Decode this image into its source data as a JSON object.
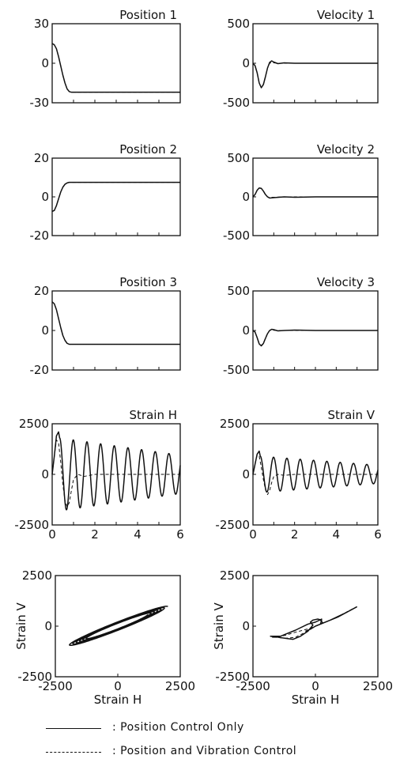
{
  "legend": {
    "solid_label": ": Position Control Only",
    "dashed_label": ": Position and Vibration Control"
  },
  "chart_data": [
    {
      "type": "line",
      "title": "Position 1",
      "xlim": [
        0,
        6
      ],
      "ylim": [
        -30,
        30
      ],
      "yticks": [
        "30",
        "0",
        "-30"
      ],
      "xticks": [],
      "x": [
        0,
        0.1,
        0.2,
        0.3,
        0.4,
        0.5,
        0.6,
        0.7,
        0.8,
        0.9,
        1.0,
        1.5,
        2,
        3,
        4,
        5,
        6
      ],
      "series": [
        {
          "style": "solid",
          "values": [
            15,
            14,
            11,
            5,
            -2,
            -9,
            -15,
            -19.5,
            -21.5,
            -22,
            -22,
            -22,
            -22,
            -22,
            -22,
            -22,
            -22
          ]
        },
        {
          "style": "dashed",
          "values": [
            15,
            14,
            11,
            5,
            -2,
            -9,
            -15,
            -19.5,
            -21.5,
            -22,
            -22,
            -22,
            -22,
            -22,
            -22,
            -22,
            -22
          ]
        }
      ]
    },
    {
      "type": "line",
      "title": "Velocity 1",
      "xlim": [
        0,
        6
      ],
      "ylim": [
        -500,
        500
      ],
      "yticks": [
        "500",
        "0",
        "-500"
      ],
      "xticks": [],
      "x": [
        0,
        0.1,
        0.2,
        0.3,
        0.4,
        0.5,
        0.6,
        0.7,
        0.8,
        0.9,
        1.0,
        1.2,
        1.5,
        2,
        3,
        4,
        5,
        6
      ],
      "series": [
        {
          "style": "solid",
          "values": [
            0,
            -30,
            -120,
            -250,
            -310,
            -270,
            -170,
            -60,
            10,
            30,
            15,
            -5,
            5,
            0,
            0,
            0,
            0,
            0
          ]
        },
        {
          "style": "dashed",
          "values": [
            0,
            -30,
            -120,
            -250,
            -305,
            -265,
            -165,
            -60,
            0,
            10,
            5,
            0,
            0,
            0,
            0,
            0,
            0,
            0
          ]
        }
      ]
    },
    {
      "type": "line",
      "title": "Position 2",
      "xlim": [
        0,
        6
      ],
      "ylim": [
        -20,
        20
      ],
      "yticks": [
        "20",
        "0",
        "-20"
      ],
      "xticks": [],
      "x": [
        0,
        0.1,
        0.2,
        0.3,
        0.4,
        0.5,
        0.6,
        0.7,
        0.8,
        1.0,
        1.5,
        2,
        3,
        4,
        5,
        6
      ],
      "series": [
        {
          "style": "solid",
          "values": [
            -7.5,
            -7,
            -4.5,
            -1,
            2.5,
            5,
            6.5,
            7.2,
            7.5,
            7.5,
            7.5,
            7.5,
            7.5,
            7.5,
            7.5,
            7.5
          ]
        },
        {
          "style": "dashed",
          "values": [
            -7.5,
            -7,
            -4.5,
            -1,
            2.5,
            5,
            6.5,
            7.2,
            7.5,
            7.5,
            7.5,
            7.5,
            7.5,
            7.5,
            7.5,
            7.5
          ]
        }
      ]
    },
    {
      "type": "line",
      "title": "Velocity 2",
      "xlim": [
        0,
        6
      ],
      "ylim": [
        -500,
        500
      ],
      "yticks": [
        "500",
        "0",
        "-500"
      ],
      "xticks": [],
      "x": [
        0,
        0.1,
        0.2,
        0.3,
        0.4,
        0.5,
        0.6,
        0.7,
        0.8,
        1.0,
        1.5,
        2,
        3,
        4,
        5,
        6
      ],
      "series": [
        {
          "style": "solid",
          "values": [
            0,
            30,
            85,
            115,
            110,
            75,
            30,
            0,
            -15,
            -10,
            0,
            -5,
            0,
            0,
            0,
            0
          ]
        },
        {
          "style": "dashed",
          "values": [
            0,
            30,
            85,
            112,
            108,
            72,
            28,
            0,
            -8,
            -5,
            0,
            0,
            0,
            0,
            0,
            0
          ]
        }
      ]
    },
    {
      "type": "line",
      "title": "Position 3",
      "xlim": [
        0,
        6
      ],
      "ylim": [
        -20,
        20
      ],
      "yticks": [
        "20",
        "0",
        "-20"
      ],
      "xticks": [],
      "x": [
        0,
        0.1,
        0.2,
        0.3,
        0.4,
        0.5,
        0.6,
        0.7,
        0.8,
        1.0,
        1.5,
        2,
        3,
        4,
        5,
        6
      ],
      "series": [
        {
          "style": "solid",
          "values": [
            14.5,
            13.5,
            10.5,
            6,
            1.5,
            -2.5,
            -5,
            -6.5,
            -7,
            -7,
            -7,
            -7,
            -7,
            -7,
            -7,
            -7
          ]
        },
        {
          "style": "dashed",
          "values": [
            14.5,
            13.5,
            10.5,
            6,
            1.5,
            -2.5,
            -5,
            -6.5,
            -7,
            -7,
            -7,
            -7,
            -7,
            -7,
            -7,
            -7
          ]
        }
      ]
    },
    {
      "type": "line",
      "title": "Velocity 3",
      "xlim": [
        0,
        6
      ],
      "ylim": [
        -500,
        500
      ],
      "yticks": [
        "500",
        "0",
        "-500"
      ],
      "xticks": [],
      "x": [
        0,
        0.1,
        0.2,
        0.3,
        0.4,
        0.5,
        0.6,
        0.7,
        0.8,
        0.9,
        1.0,
        1.2,
        1.5,
        2,
        3,
        4,
        5,
        6
      ],
      "series": [
        {
          "style": "solid",
          "values": [
            0,
            -20,
            -90,
            -170,
            -195,
            -165,
            -100,
            -40,
            0,
            15,
            10,
            -5,
            0,
            5,
            0,
            0,
            0,
            0
          ]
        },
        {
          "style": "dashed",
          "values": [
            0,
            -20,
            -90,
            -168,
            -190,
            -160,
            -95,
            -35,
            0,
            5,
            3,
            0,
            0,
            0,
            0,
            0,
            0,
            0
          ]
        }
      ]
    },
    {
      "type": "line",
      "title": "Strain H",
      "xlim": [
        0,
        6
      ],
      "ylim": [
        -2500,
        2500
      ],
      "yticks": [
        "2500",
        "0",
        "-2500"
      ],
      "xticks": [
        "0",
        "2",
        "4",
        "6"
      ],
      "series": [
        {
          "style": "solid",
          "kind": "oscillation",
          "t0": 0.35,
          "t1": 6,
          "period": 0.64,
          "amp_start": 1800,
          "amp_end": 950,
          "onset": [
            [
              0,
              0
            ],
            [
              0.1,
              900
            ],
            [
              0.2,
              1900
            ],
            [
              0.3,
              2100
            ],
            [
              0.35,
              1800
            ]
          ]
        },
        {
          "style": "dashed",
          "values_x": [
            0,
            0.1,
            0.2,
            0.3,
            0.4,
            0.5,
            0.6,
            0.7,
            0.8,
            0.9,
            1.0,
            1.2,
            1.5,
            2,
            3,
            4,
            5,
            6
          ],
          "values": [
            0,
            900,
            1700,
            1550,
            600,
            -500,
            -1300,
            -1600,
            -1400,
            -800,
            -250,
            0,
            -100,
            0,
            0,
            0,
            0,
            0
          ]
        }
      ]
    },
    {
      "type": "line",
      "title": "Strain V",
      "xlim": [
        0,
        6
      ],
      "ylim": [
        -2500,
        2500
      ],
      "yticks": [
        "2500",
        "0",
        "-2500"
      ],
      "xticks": [
        "0",
        "2",
        "4",
        "6"
      ],
      "series": [
        {
          "style": "solid",
          "kind": "oscillation",
          "t0": 0.35,
          "t1": 6,
          "period": 0.64,
          "amp_start": 900,
          "amp_end": 450,
          "onset": [
            [
              0,
              0
            ],
            [
              0.1,
              500
            ],
            [
              0.2,
              1000
            ],
            [
              0.3,
              1150
            ],
            [
              0.35,
              900
            ]
          ]
        },
        {
          "style": "dashed",
          "values_x": [
            0,
            0.1,
            0.2,
            0.3,
            0.4,
            0.5,
            0.6,
            0.7,
            0.8,
            0.9,
            1.0,
            1.2,
            1.5,
            2,
            3,
            4,
            5,
            6
          ],
          "values": [
            0,
            500,
            950,
            900,
            350,
            -250,
            -750,
            -1000,
            -800,
            -400,
            -100,
            0,
            -50,
            0,
            0,
            0,
            0,
            0
          ]
        }
      ]
    },
    {
      "type": "scatter-trajectory",
      "xlabel": "Strain H",
      "ylabel": "Strain V",
      "xlim": [
        -2500,
        2500
      ],
      "ylim": [
        -2500,
        2500
      ],
      "xticks": [
        "-2500",
        "0",
        "2500"
      ],
      "yticks": [
        "2500",
        "0",
        "-2500"
      ],
      "series": [
        {
          "style": "solid",
          "kind": "ellipse-loops",
          "loops": 6,
          "amp_start": 2000,
          "amp_end": 1200,
          "slope": 0.48,
          "spread": 0.12
        }
      ]
    },
    {
      "type": "scatter-trajectory",
      "xlabel": "Strain H",
      "ylabel": "Strain V",
      "xlim": [
        -2500,
        2500
      ],
      "ylim": [
        -2500,
        2500
      ],
      "xticks": [
        "-2500",
        "0",
        "2500"
      ],
      "yticks": [
        "2500",
        "0",
        "-2500"
      ],
      "series": [
        {
          "style": "solid",
          "points": [
            [
              0,
              0
            ],
            [
              600,
              300
            ],
            [
              1200,
              650
            ],
            [
              1650,
              950
            ],
            [
              1500,
              850
            ],
            [
              900,
              450
            ],
            [
              300,
              150
            ],
            [
              200,
              300
            ],
            [
              250,
              350
            ],
            [
              0,
              200
            ],
            [
              -300,
              100
            ],
            [
              -800,
              -200
            ],
            [
              -1200,
              -400
            ],
            [
              -1400,
              -500
            ],
            [
              -1650,
              -500
            ],
            [
              -1800,
              -500
            ],
            [
              -1650,
              -520
            ],
            [
              -1200,
              -600
            ],
            [
              -900,
              -650
            ],
            [
              -600,
              -500
            ],
            [
              -300,
              -250
            ],
            [
              -100,
              50
            ],
            [
              -200,
              200
            ],
            [
              -100,
              300
            ],
            [
              100,
              350
            ],
            [
              250,
              300
            ],
            [
              200,
              100
            ],
            [
              0,
              0
            ],
            [
              -200,
              -150
            ],
            [
              -400,
              -250
            ]
          ]
        },
        {
          "style": "dashed",
          "points": [
            [
              0,
              0
            ],
            [
              600,
              300
            ],
            [
              1200,
              650
            ],
            [
              1650,
              950
            ],
            [
              1400,
              800
            ],
            [
              800,
              400
            ],
            [
              200,
              100
            ],
            [
              -200,
              -100
            ],
            [
              -800,
              -300
            ],
            [
              -1200,
              -450
            ],
            [
              -1600,
              -550
            ],
            [
              -1750,
              -550
            ],
            [
              -1600,
              -550
            ],
            [
              -1200,
              -600
            ],
            [
              -800,
              -550
            ],
            [
              -400,
              -300
            ],
            [
              -100,
              -50
            ],
            [
              0,
              0
            ]
          ]
        }
      ]
    }
  ]
}
